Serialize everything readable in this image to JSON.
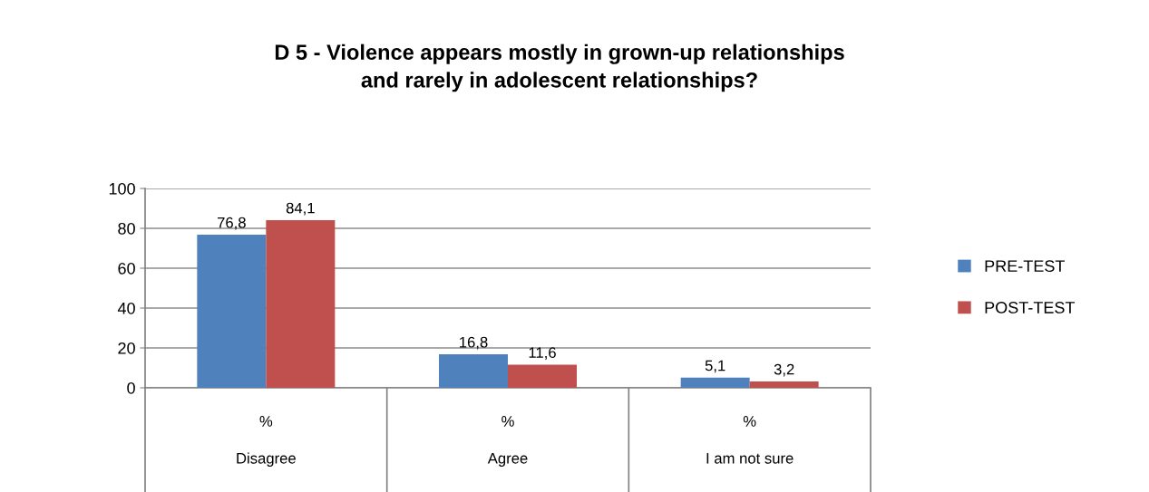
{
  "chart_data": {
    "type": "bar",
    "title": "D 5 - Violence appears mostly in grown-up relationships\nand rarely in adolescent relationships?",
    "categories": [
      "%\nDisagree",
      "%\nAgree",
      "%\nI am not sure"
    ],
    "series": [
      {
        "name": "PRE-TEST",
        "color": "#4f81bd",
        "values": [
          76.8,
          16.8,
          5.1
        ],
        "value_labels": [
          "76,8",
          "16,8",
          "5,1"
        ]
      },
      {
        "name": "POST-TEST",
        "color": "#c0504d",
        "values": [
          84.1,
          11.6,
          3.2
        ],
        "value_labels": [
          "84,1",
          "11,6",
          "3,2"
        ]
      }
    ],
    "ylim": [
      0,
      100
    ],
    "yticks": [
      0,
      20,
      40,
      60,
      80,
      100
    ],
    "grid": "y",
    "legend": "right"
  }
}
